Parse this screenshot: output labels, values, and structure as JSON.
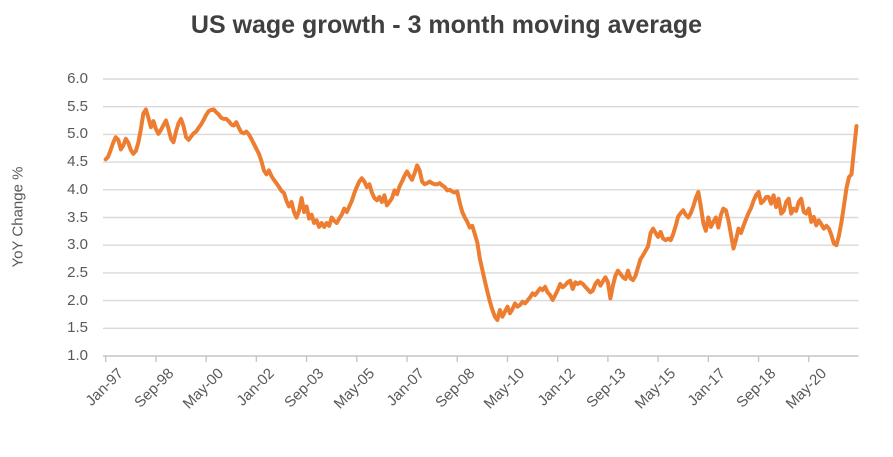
{
  "title": "US wage growth - 3 month moving average",
  "y_axis": {
    "label": "YoY Change %",
    "tick_labels": [
      "6.0",
      "5.5",
      "5.0",
      "4.5",
      "4.0",
      "3.5",
      "3.0",
      "2.5",
      "2.0",
      "1.5",
      "1.0"
    ]
  },
  "x_axis": {
    "tick_labels": [
      "Jan-97",
      "Sep-98",
      "May-00",
      "Jan-02",
      "Sep-03",
      "May-05",
      "Jan-07",
      "Sep-08",
      "May-10",
      "Jan-12",
      "Sep-13",
      "May-15",
      "Jan-17",
      "Sep-18",
      "May-20"
    ],
    "tick_interval_months": 20
  },
  "colors": {
    "line": "#ED7D31",
    "gridline": "#D9D9D9",
    "axis": "#C6C6C6",
    "title_text": "#404040",
    "tick_text": "#595959",
    "background": "#FFFFFF"
  },
  "chart_data": {
    "type": "line",
    "title": "US wage growth - 3 month moving average",
    "xlabel": "",
    "ylabel": "YoY Change %",
    "ylim": [
      1.0,
      6.0
    ],
    "y_tick_step": 0.5,
    "grid": "horizontal",
    "legend_position": "none",
    "x_start": "1997-01",
    "x_end": "2021-12",
    "x_step_months": 1,
    "x_tick_labels": [
      "Jan-97",
      "Sep-98",
      "May-00",
      "Jan-02",
      "Sep-03",
      "May-05",
      "Jan-07",
      "Sep-08",
      "May-10",
      "Jan-12",
      "Sep-13",
      "May-15",
      "Jan-17",
      "Sep-18",
      "May-20"
    ],
    "x_tick_interval_months": 20,
    "series": [
      {
        "name": "US wage growth - 3 month moving average",
        "color": "#ED7D31",
        "stroke_width": 4,
        "values": [
          4.55,
          4.6,
          4.72,
          4.85,
          4.95,
          4.9,
          4.73,
          4.8,
          4.92,
          4.85,
          4.72,
          4.65,
          4.7,
          4.85,
          5.1,
          5.38,
          5.45,
          5.3,
          5.13,
          5.24,
          5.1,
          5.01,
          5.08,
          5.17,
          5.25,
          5.1,
          4.92,
          4.86,
          5.05,
          5.2,
          5.28,
          5.15,
          4.95,
          4.9,
          4.96,
          5.02,
          5.05,
          5.12,
          5.18,
          5.26,
          5.35,
          5.42,
          5.44,
          5.45,
          5.4,
          5.36,
          5.3,
          5.28,
          5.28,
          5.24,
          5.18,
          5.16,
          5.22,
          5.12,
          5.04,
          5.02,
          5.05,
          5.0,
          4.92,
          4.83,
          4.74,
          4.65,
          4.52,
          4.35,
          4.28,
          4.35,
          4.25,
          4.18,
          4.12,
          4.05,
          3.98,
          3.94,
          3.8,
          3.7,
          3.78,
          3.6,
          3.5,
          3.62,
          3.85,
          3.6,
          3.7,
          3.48,
          3.55,
          3.4,
          3.45,
          3.33,
          3.4,
          3.33,
          3.4,
          3.35,
          3.5,
          3.44,
          3.4,
          3.48,
          3.55,
          3.66,
          3.6,
          3.7,
          3.8,
          3.94,
          4.05,
          4.15,
          4.21,
          4.15,
          4.05,
          4.1,
          3.95,
          3.85,
          3.81,
          3.87,
          3.78,
          3.9,
          3.72,
          3.78,
          3.85,
          3.99,
          3.92,
          4.06,
          4.15,
          4.25,
          4.33,
          4.25,
          4.18,
          4.3,
          4.44,
          4.35,
          4.15,
          4.1,
          4.12,
          4.15,
          4.12,
          4.1,
          4.1,
          4.12,
          4.08,
          4.05,
          3.99,
          4.0,
          3.97,
          3.95,
          3.97,
          3.76,
          3.6,
          3.5,
          3.42,
          3.32,
          3.35,
          3.2,
          3.05,
          2.76,
          2.55,
          2.35,
          2.16,
          1.98,
          1.83,
          1.71,
          1.65,
          1.83,
          1.71,
          1.8,
          1.89,
          1.77,
          1.85,
          1.95,
          1.89,
          1.92,
          1.98,
          1.95,
          2.0,
          2.06,
          2.13,
          2.1,
          2.16,
          2.22,
          2.19,
          2.25,
          2.15,
          2.1,
          2.01,
          2.1,
          2.19,
          2.3,
          2.24,
          2.28,
          2.33,
          2.36,
          2.21,
          2.33,
          2.3,
          2.33,
          2.3,
          2.25,
          2.2,
          2.15,
          2.18,
          2.3,
          2.36,
          2.27,
          2.35,
          2.42,
          2.33,
          2.04,
          2.27,
          2.45,
          2.54,
          2.48,
          2.42,
          2.39,
          2.54,
          2.4,
          2.37,
          2.45,
          2.6,
          2.75,
          2.82,
          2.9,
          2.98,
          3.22,
          3.3,
          3.22,
          3.15,
          3.24,
          3.12,
          3.09,
          3.12,
          3.09,
          3.2,
          3.35,
          3.52,
          3.58,
          3.63,
          3.55,
          3.5,
          3.58,
          3.7,
          3.85,
          3.96,
          3.7,
          3.4,
          3.26,
          3.5,
          3.33,
          3.42,
          3.5,
          3.32,
          3.55,
          3.66,
          3.63,
          3.45,
          3.2,
          2.94,
          3.1,
          3.3,
          3.22,
          3.35,
          3.47,
          3.58,
          3.67,
          3.8,
          3.9,
          3.96,
          3.76,
          3.8,
          3.87,
          3.87,
          3.75,
          3.9,
          3.69,
          3.84,
          3.57,
          3.62,
          3.78,
          3.84,
          3.57,
          3.66,
          3.62,
          3.78,
          3.84,
          3.6,
          3.57,
          3.66,
          3.42,
          3.51,
          3.36,
          3.45,
          3.38,
          3.3,
          3.35,
          3.3,
          3.18,
          3.03,
          3.0,
          3.17,
          3.41,
          3.71,
          4.02,
          4.23,
          4.28,
          4.73,
          5.15
        ]
      }
    ]
  }
}
